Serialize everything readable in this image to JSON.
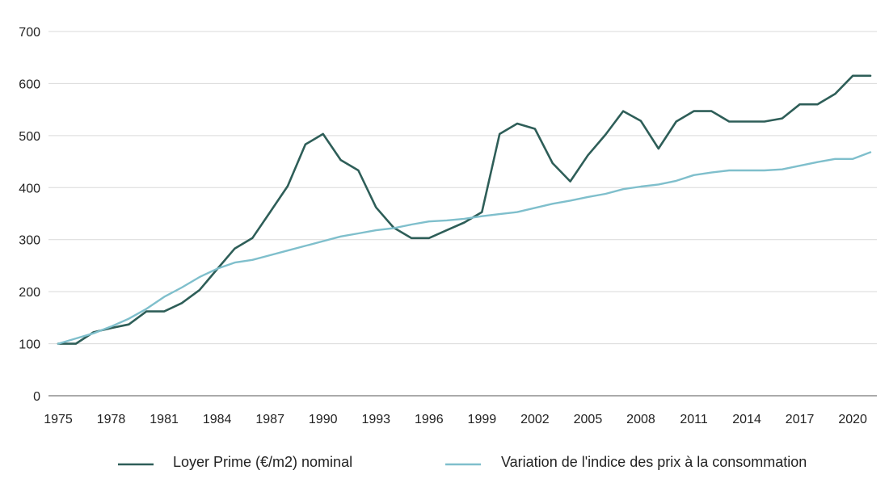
{
  "chart_data": {
    "type": "line",
    "title": "",
    "xlabel": "",
    "ylabel": "",
    "ylim": [
      0,
      700
    ],
    "y_ticks": [
      0,
      100,
      200,
      300,
      400,
      500,
      600,
      700
    ],
    "x_range": [
      1975,
      2021
    ],
    "x_ticks": [
      1975,
      1978,
      1981,
      1984,
      1987,
      1990,
      1993,
      1996,
      1999,
      2002,
      2005,
      2008,
      2011,
      2014,
      2017,
      2020
    ],
    "grid": true,
    "legend_position": "bottom",
    "series": [
      {
        "name": "Loyer Prime (€/m2) nominal",
        "color": "#2e5e58",
        "x": [
          1975,
          1976,
          1977,
          1978,
          1979,
          1980,
          1981,
          1982,
          1983,
          1984,
          1985,
          1986,
          1987,
          1988,
          1989,
          1990,
          1991,
          1992,
          1993,
          1994,
          1995,
          1996,
          1997,
          1998,
          1999,
          2000,
          2001,
          2002,
          2003,
          2004,
          2005,
          2006,
          2007,
          2008,
          2009,
          2010,
          2011,
          2012,
          2013,
          2014,
          2015,
          2016,
          2017,
          2018,
          2019,
          2020,
          2021
        ],
        "values": [
          100,
          100,
          122,
          130,
          137,
          162,
          162,
          178,
          203,
          243,
          283,
          303,
          353,
          403,
          483,
          503,
          453,
          433,
          362,
          323,
          303,
          303,
          318,
          333,
          353,
          503,
          523,
          513,
          447,
          412,
          462,
          502,
          547,
          528,
          475,
          527,
          547,
          547,
          527,
          527,
          527,
          533,
          560,
          560,
          580,
          615,
          615
        ]
      },
      {
        "name": "Variation de l'indice des prix à la consommation",
        "color": "#7fbfcc",
        "x": [
          1975,
          1976,
          1977,
          1978,
          1979,
          1980,
          1981,
          1982,
          1983,
          1984,
          1985,
          1986,
          1987,
          1988,
          1989,
          1990,
          1991,
          1992,
          1993,
          1994,
          1995,
          1996,
          1997,
          1998,
          1999,
          2000,
          2001,
          2002,
          2003,
          2004,
          2005,
          2006,
          2007,
          2008,
          2009,
          2010,
          2011,
          2012,
          2013,
          2014,
          2015,
          2016,
          2017,
          2018,
          2019,
          2020,
          2021
        ],
        "values": [
          100,
          110,
          120,
          133,
          148,
          167,
          190,
          208,
          228,
          244,
          256,
          261,
          270,
          279,
          288,
          297,
          306,
          312,
          318,
          322,
          329,
          335,
          337,
          340,
          345,
          349,
          353,
          361,
          369,
          375,
          382,
          388,
          397,
          402,
          406,
          413,
          424,
          429,
          433,
          433,
          433,
          435,
          442,
          449,
          455,
          455,
          468
        ]
      }
    ]
  }
}
